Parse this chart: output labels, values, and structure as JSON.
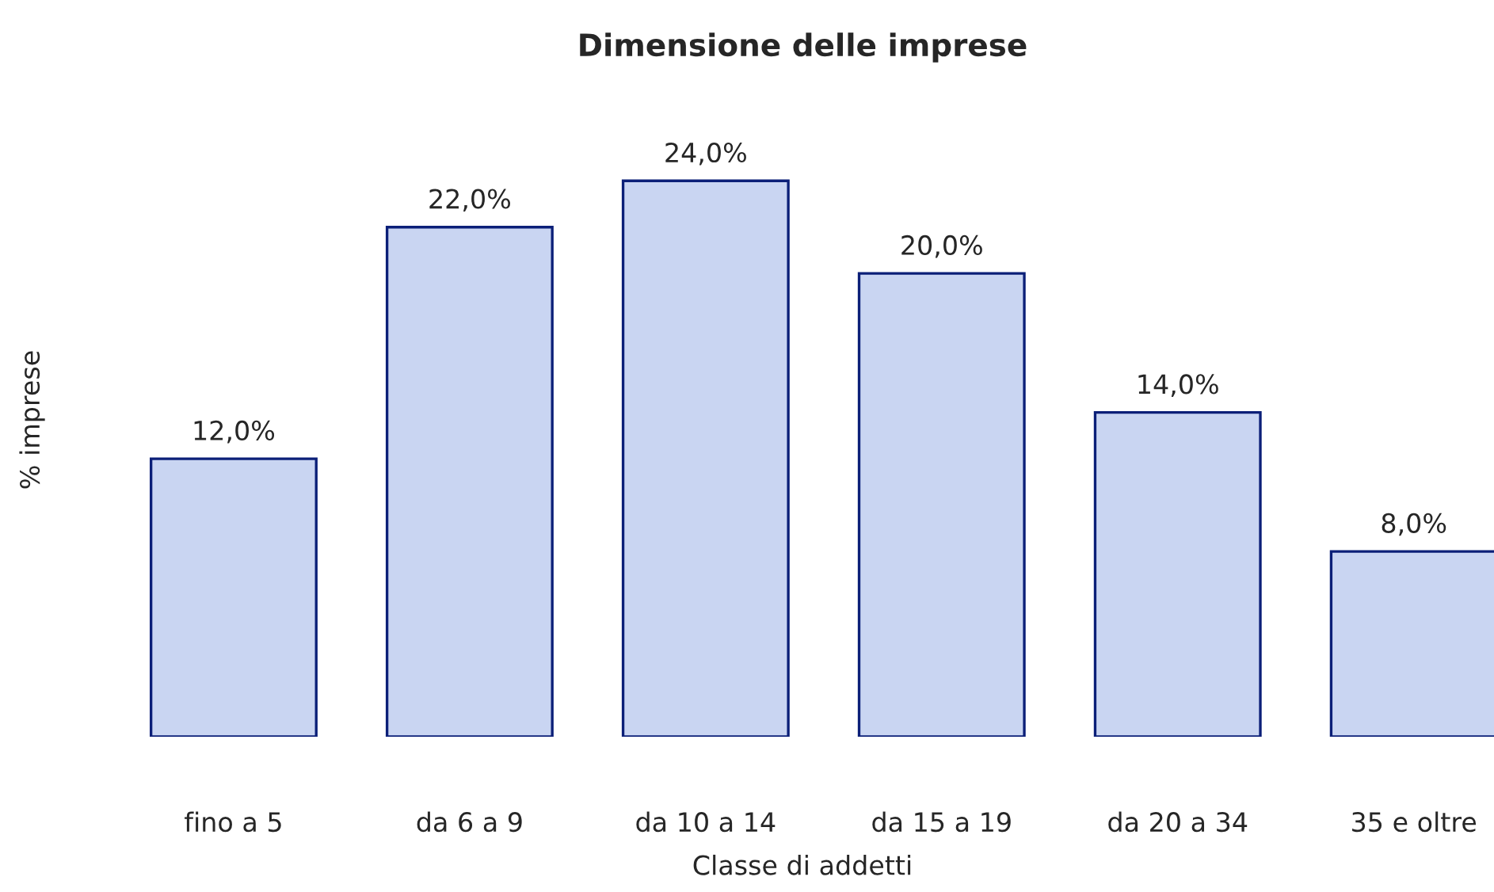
{
  "chart_data": {
    "type": "bar",
    "title": "Dimensione delle imprese",
    "xlabel": "Classe di addetti",
    "ylabel": "% imprese",
    "categories": [
      "fino a 5",
      "da 6 a 9",
      "da 10 a 14",
      "da 15 a 19",
      "da 20 a 34",
      "35 e oltre"
    ],
    "values": [
      12,
      22,
      24,
      20,
      14,
      8
    ],
    "value_labels": [
      "12,0%",
      "22,0%",
      "24,0%",
      "20,0%",
      "14,0%",
      "8,0%"
    ],
    "color": "#c9d5f2",
    "grid": false,
    "legend": false
  }
}
